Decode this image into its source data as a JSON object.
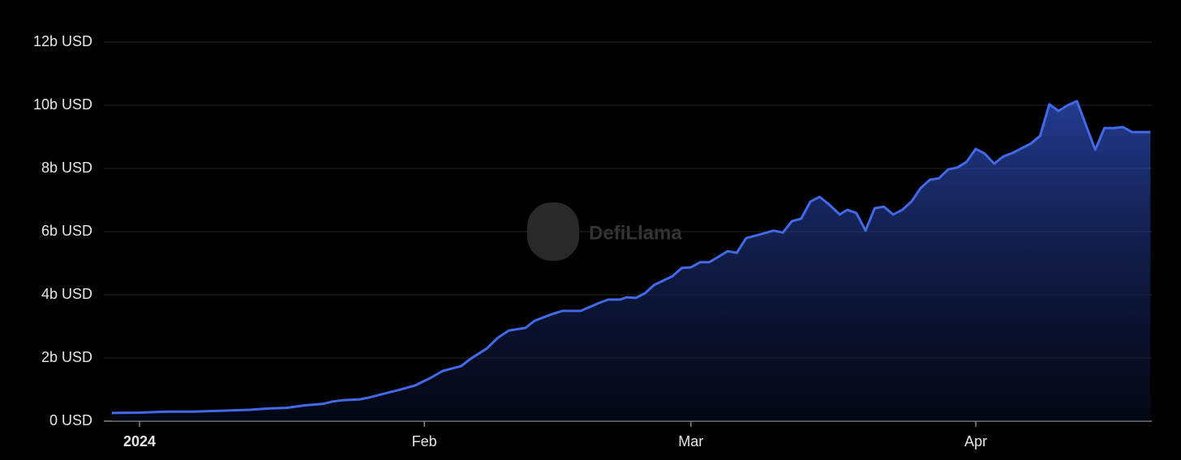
{
  "chart_data": {
    "type": "area",
    "watermark": "DefiLlama",
    "color": "#4169e8",
    "grid": true,
    "x": [
      -3,
      0,
      3,
      6,
      9,
      12,
      14,
      16,
      18,
      20,
      21,
      22,
      24,
      25,
      27,
      28,
      29,
      30,
      31.6,
      33,
      35,
      36,
      37.8,
      39,
      40.2,
      42,
      43,
      44.8,
      46,
      48,
      50,
      51,
      52.3,
      53,
      54,
      55,
      56,
      58,
      59,
      60,
      61,
      62,
      64,
      65,
      66,
      68,
      69,
      70,
      71,
      72,
      73,
      74,
      75,
      76.2,
      77,
      78,
      79,
      80,
      81,
      82,
      83,
      84,
      85,
      86,
      87,
      88,
      89,
      90,
      91,
      92,
      93,
      94,
      95,
      96,
      97,
      98,
      99,
      100,
      101,
      102,
      103,
      104,
      105,
      106,
      107,
      108,
      109,
      110
    ],
    "values": [
      0.26,
      0.27,
      0.3,
      0.3,
      0.33,
      0.36,
      0.4,
      0.42,
      0.5,
      0.55,
      0.62,
      0.66,
      0.69,
      0.75,
      0.9,
      0.97,
      1.05,
      1.13,
      1.36,
      1.59,
      1.74,
      1.97,
      2.3,
      2.64,
      2.87,
      2.95,
      3.18,
      3.38,
      3.49,
      3.49,
      3.74,
      3.85,
      3.85,
      3.92,
      3.9,
      4.05,
      4.31,
      4.59,
      4.85,
      4.87,
      5.03,
      5.03,
      5.38,
      5.33,
      5.79,
      5.95,
      6.03,
      5.97,
      6.33,
      6.41,
      6.95,
      7.1,
      6.87,
      6.54,
      6.69,
      6.59,
      6.03,
      6.74,
      6.79,
      6.54,
      6.69,
      6.95,
      7.38,
      7.64,
      7.69,
      7.97,
      8.03,
      8.21,
      8.62,
      8.46,
      8.15,
      8.38,
      8.49,
      8.64,
      8.79,
      9.03,
      10.03,
      9.82,
      10.0,
      10.13,
      9.36,
      8.59,
      9.28,
      9.28,
      9.31,
      9.15,
      9.15,
      9.15
    ],
    "xlim": [
      -3.88,
      110.15
    ],
    "xticks": [
      {
        "value": 0,
        "label": "2024"
      },
      {
        "value": 31,
        "label": "Feb"
      },
      {
        "value": 60,
        "label": "Mar"
      },
      {
        "value": 91,
        "label": "Apr"
      }
    ],
    "ylim": [
      0,
      12
    ],
    "yticks": [
      {
        "value": 0,
        "label": "0 USD"
      },
      {
        "value": 2,
        "label": "2b USD"
      },
      {
        "value": 4,
        "label": "4b USD"
      },
      {
        "value": 6,
        "label": "6b USD"
      },
      {
        "value": 8,
        "label": "8b USD"
      },
      {
        "value": 10,
        "label": "10b USD"
      },
      {
        "value": 12,
        "label": "12b USD"
      }
    ]
  }
}
